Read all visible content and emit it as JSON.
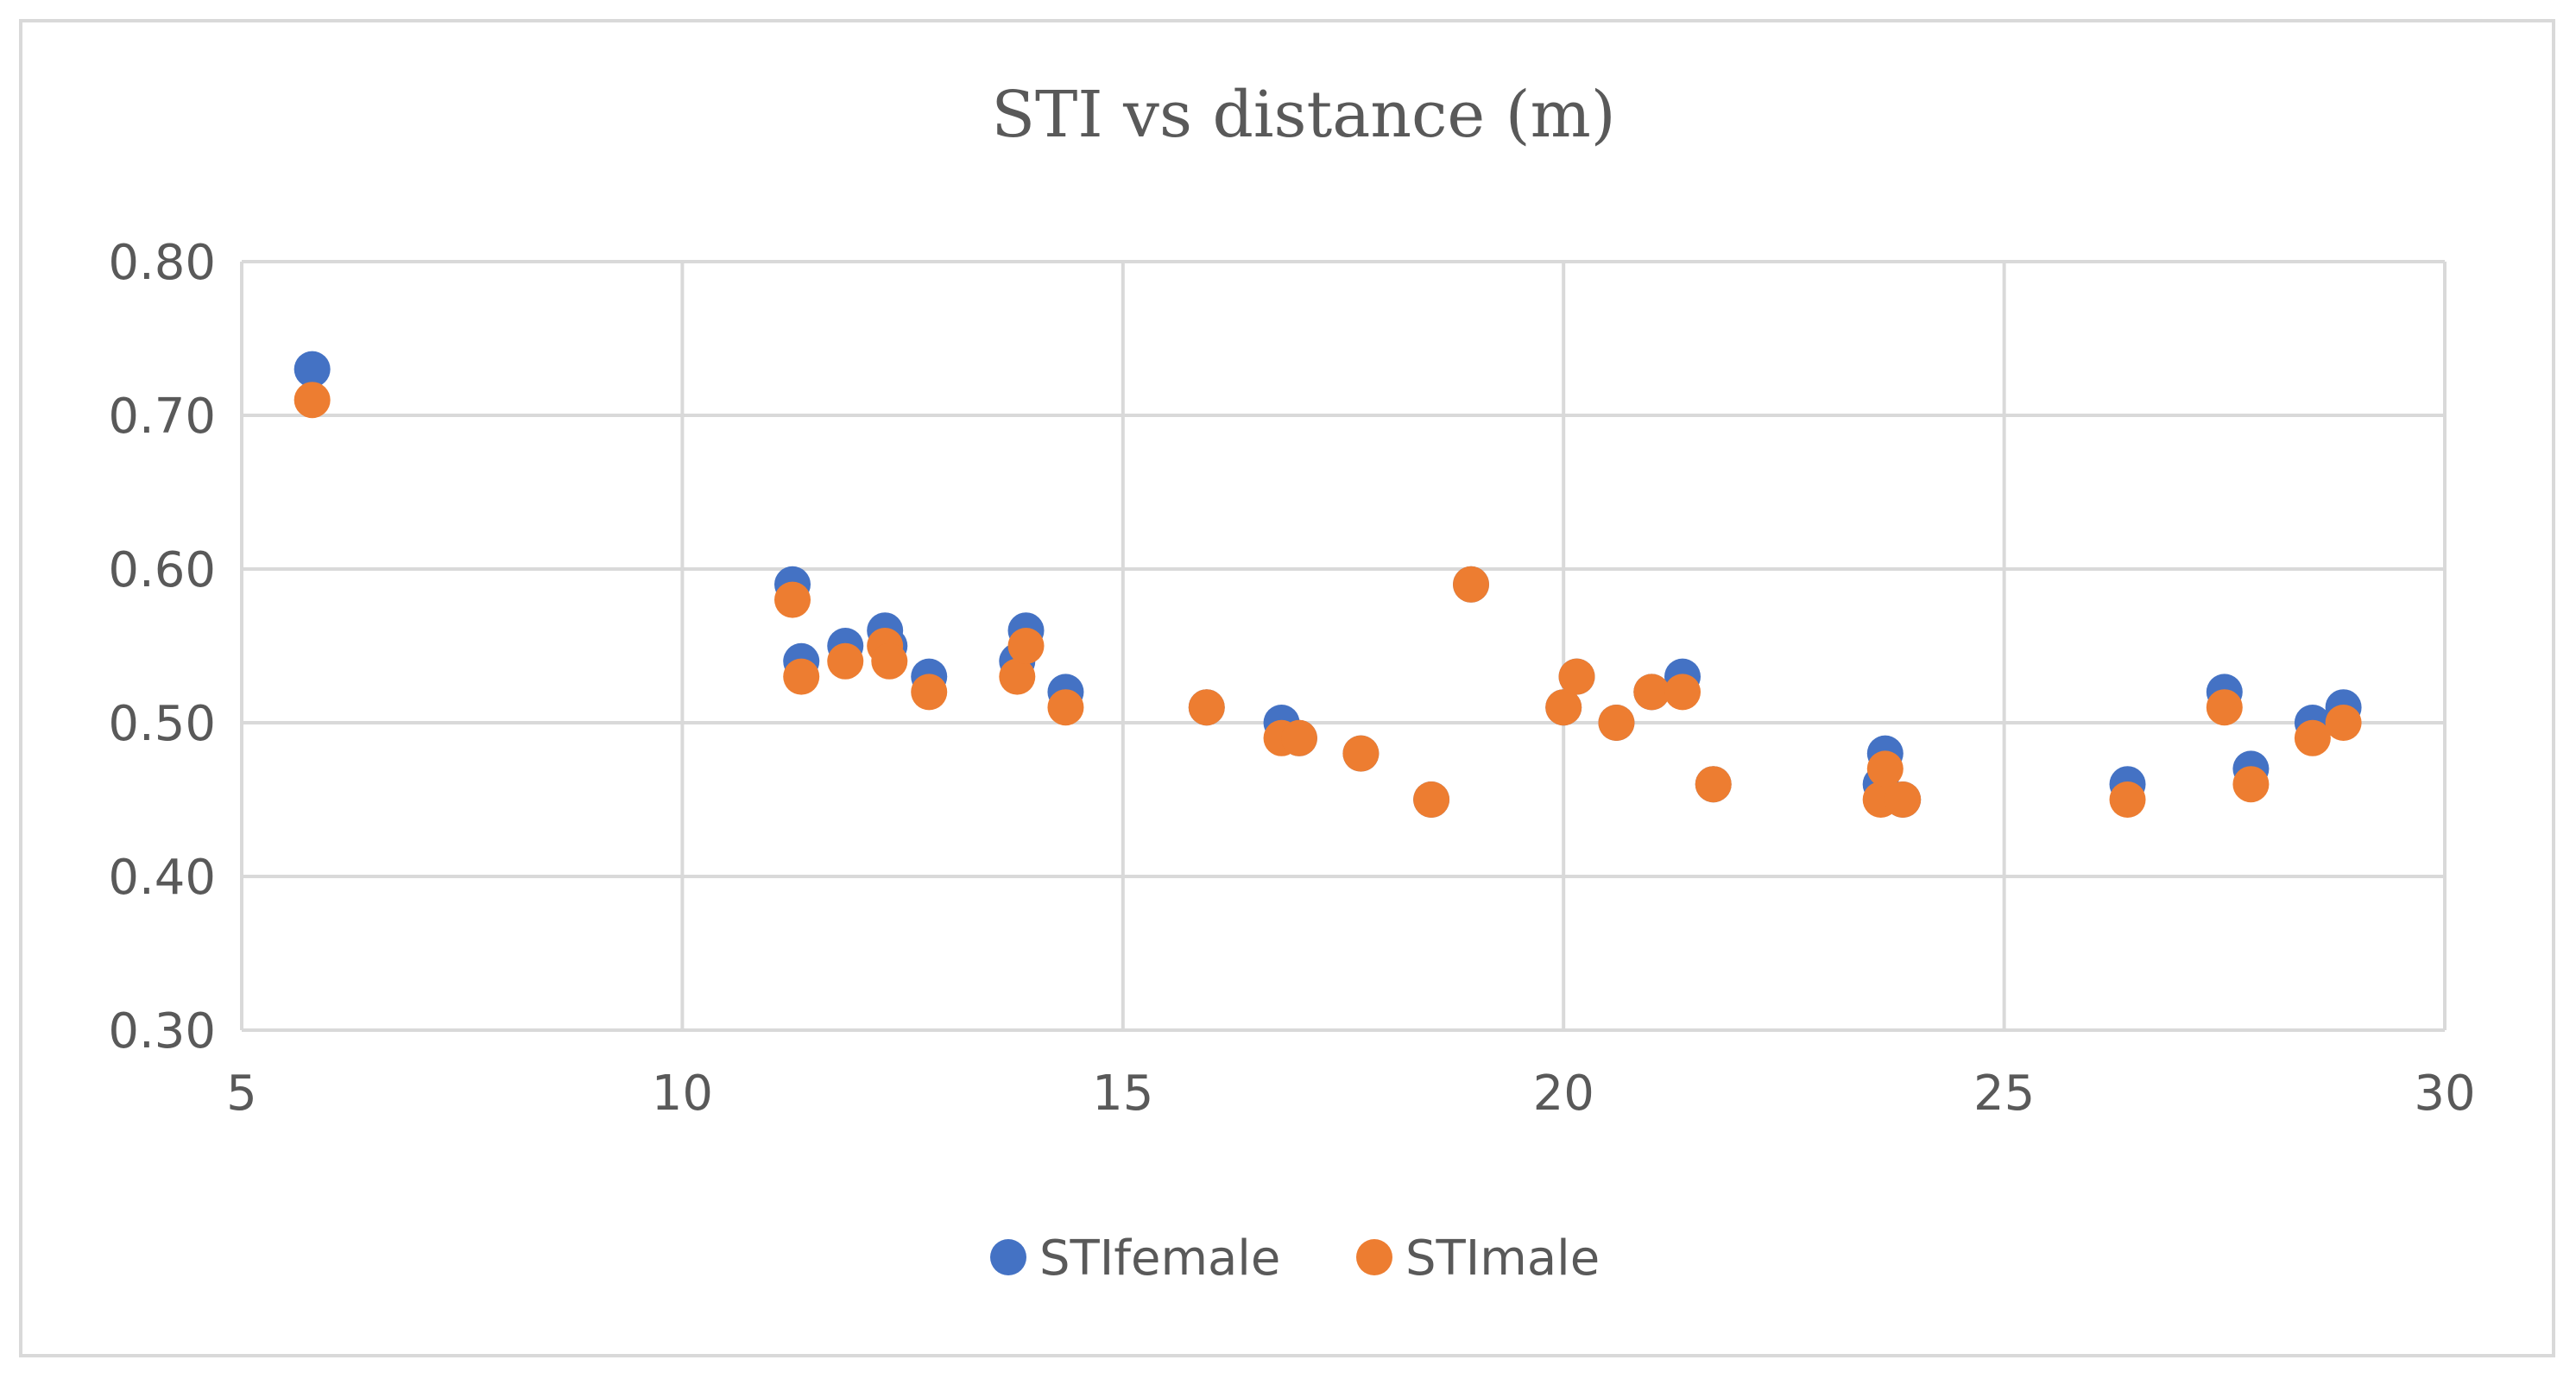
{
  "chart_data": {
    "type": "scatter",
    "title": "STI vs distance (m)",
    "xlabel": "",
    "ylabel": "",
    "xlim": [
      5,
      30
    ],
    "ylim": [
      0.3,
      0.8
    ],
    "x_ticks": [
      5,
      10,
      15,
      20,
      25,
      30
    ],
    "y_ticks": [
      0.3,
      0.4,
      0.5,
      0.6,
      0.7,
      0.8
    ],
    "y_tick_labels": [
      "0.30",
      "0.40",
      "0.50",
      "0.60",
      "0.70",
      "0.80"
    ],
    "grid": true,
    "legend_position": "bottom",
    "series": [
      {
        "name": "STIfemale",
        "color": "#4472C4",
        "points": [
          [
            5.8,
            0.73
          ],
          [
            11.25,
            0.59
          ],
          [
            11.35,
            0.54
          ],
          [
            11.85,
            0.55
          ],
          [
            12.3,
            0.56
          ],
          [
            12.35,
            0.55
          ],
          [
            12.8,
            0.53
          ],
          [
            13.8,
            0.54
          ],
          [
            13.9,
            0.56
          ],
          [
            14.35,
            0.52
          ],
          [
            15.95,
            0.51
          ],
          [
            16.8,
            0.5
          ],
          [
            17.0,
            0.49
          ],
          [
            17.7,
            0.48
          ],
          [
            18.5,
            0.45
          ],
          [
            18.95,
            0.59
          ],
          [
            20.0,
            0.51
          ],
          [
            20.15,
            0.53
          ],
          [
            20.6,
            0.5
          ],
          [
            21.0,
            0.52
          ],
          [
            21.35,
            0.53
          ],
          [
            21.7,
            0.46
          ],
          [
            23.6,
            0.46
          ],
          [
            23.65,
            0.48
          ],
          [
            23.85,
            0.45
          ],
          [
            26.4,
            0.46
          ],
          [
            27.5,
            0.52
          ],
          [
            27.8,
            0.47
          ],
          [
            28.5,
            0.5
          ],
          [
            28.85,
            0.51
          ]
        ]
      },
      {
        "name": "STImale",
        "color": "#ED7D31",
        "points": [
          [
            5.8,
            0.71
          ],
          [
            11.25,
            0.58
          ],
          [
            11.35,
            0.53
          ],
          [
            11.85,
            0.54
          ],
          [
            12.3,
            0.55
          ],
          [
            12.35,
            0.54
          ],
          [
            12.8,
            0.52
          ],
          [
            13.8,
            0.53
          ],
          [
            13.9,
            0.55
          ],
          [
            14.35,
            0.51
          ],
          [
            15.95,
            0.51
          ],
          [
            16.8,
            0.49
          ],
          [
            17.0,
            0.49
          ],
          [
            17.7,
            0.48
          ],
          [
            18.5,
            0.45
          ],
          [
            18.95,
            0.59
          ],
          [
            20.0,
            0.51
          ],
          [
            20.15,
            0.53
          ],
          [
            20.6,
            0.5
          ],
          [
            21.0,
            0.52
          ],
          [
            21.35,
            0.52
          ],
          [
            21.7,
            0.46
          ],
          [
            23.6,
            0.45
          ],
          [
            23.65,
            0.47
          ],
          [
            23.85,
            0.45
          ],
          [
            26.4,
            0.45
          ],
          [
            27.5,
            0.51
          ],
          [
            27.8,
            0.46
          ],
          [
            28.5,
            0.49
          ],
          [
            28.85,
            0.5
          ]
        ]
      }
    ]
  }
}
